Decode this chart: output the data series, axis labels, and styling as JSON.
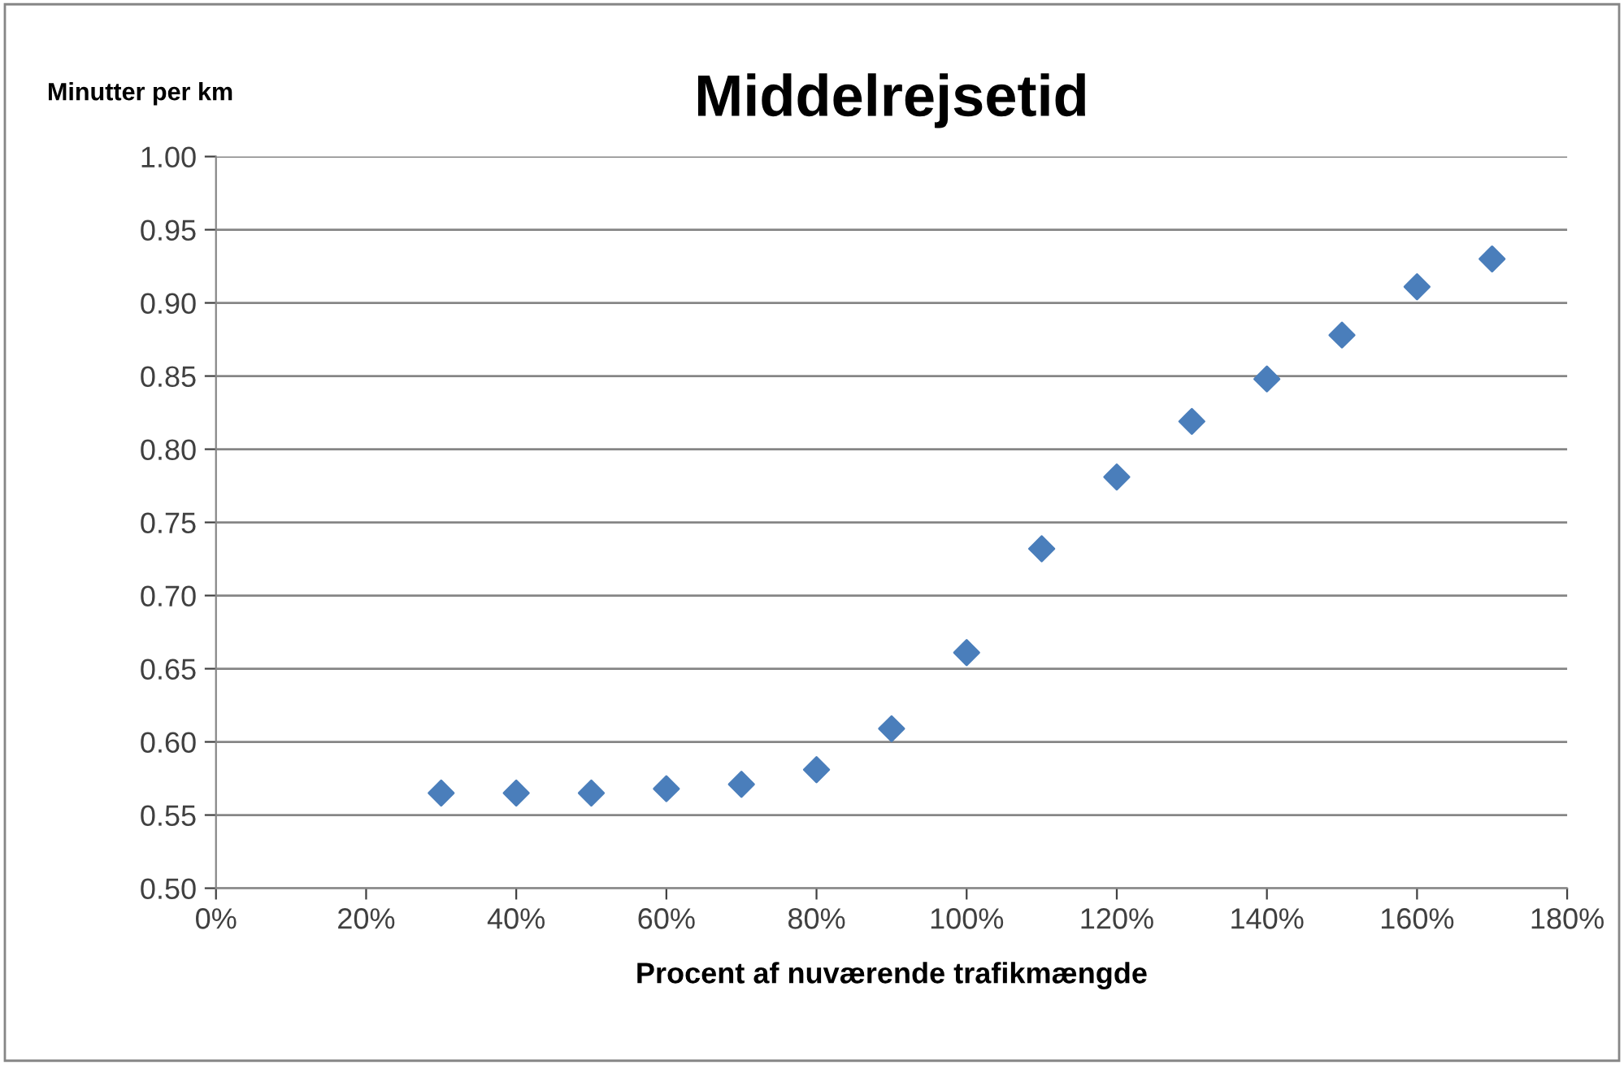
{
  "chart_data": {
    "type": "scatter",
    "title": "Middelrejsetid",
    "xlabel": "Procent af nuværende trafikmængde",
    "ylabel": "Minutter per km",
    "x": [
      30,
      40,
      50,
      60,
      70,
      80,
      90,
      100,
      110,
      120,
      130,
      140,
      150,
      160,
      170
    ],
    "series": [
      {
        "color": "#4a7ebb",
        "values": [
          0.565,
          0.565,
          0.565,
          0.568,
          0.571,
          0.581,
          0.609,
          0.661,
          0.732,
          0.781,
          0.819,
          0.848,
          0.878,
          0.911,
          0.93
        ]
      }
    ],
    "xlim": [
      0,
      180
    ],
    "xticks": [
      {
        "value": 0,
        "label": "0%"
      },
      {
        "value": 20,
        "label": "20%"
      },
      {
        "value": 40,
        "label": "40%"
      },
      {
        "value": 60,
        "label": "60%"
      },
      {
        "value": 80,
        "label": "80%"
      },
      {
        "value": 100,
        "label": "100%"
      },
      {
        "value": 120,
        "label": "120%"
      },
      {
        "value": 140,
        "label": "140%"
      },
      {
        "value": 160,
        "label": "160%"
      },
      {
        "value": 180,
        "label": "180%"
      }
    ],
    "ylim": [
      0.5,
      1.0
    ],
    "yticks": [
      {
        "value": 0.5,
        "label": "0.50"
      },
      {
        "value": 0.55,
        "label": "0.55"
      },
      {
        "value": 0.6,
        "label": "0.60"
      },
      {
        "value": 0.65,
        "label": "0.65"
      },
      {
        "value": 0.7,
        "label": "0.70"
      },
      {
        "value": 0.75,
        "label": "0.75"
      },
      {
        "value": 0.8,
        "label": "0.80"
      },
      {
        "value": 0.85,
        "label": "0.85"
      },
      {
        "value": 0.9,
        "label": "0.90"
      },
      {
        "value": 0.95,
        "label": "0.95"
      },
      {
        "value": 1.0,
        "label": "1.00"
      }
    ],
    "grid": "y",
    "marker": "diamond",
    "legend": false
  }
}
